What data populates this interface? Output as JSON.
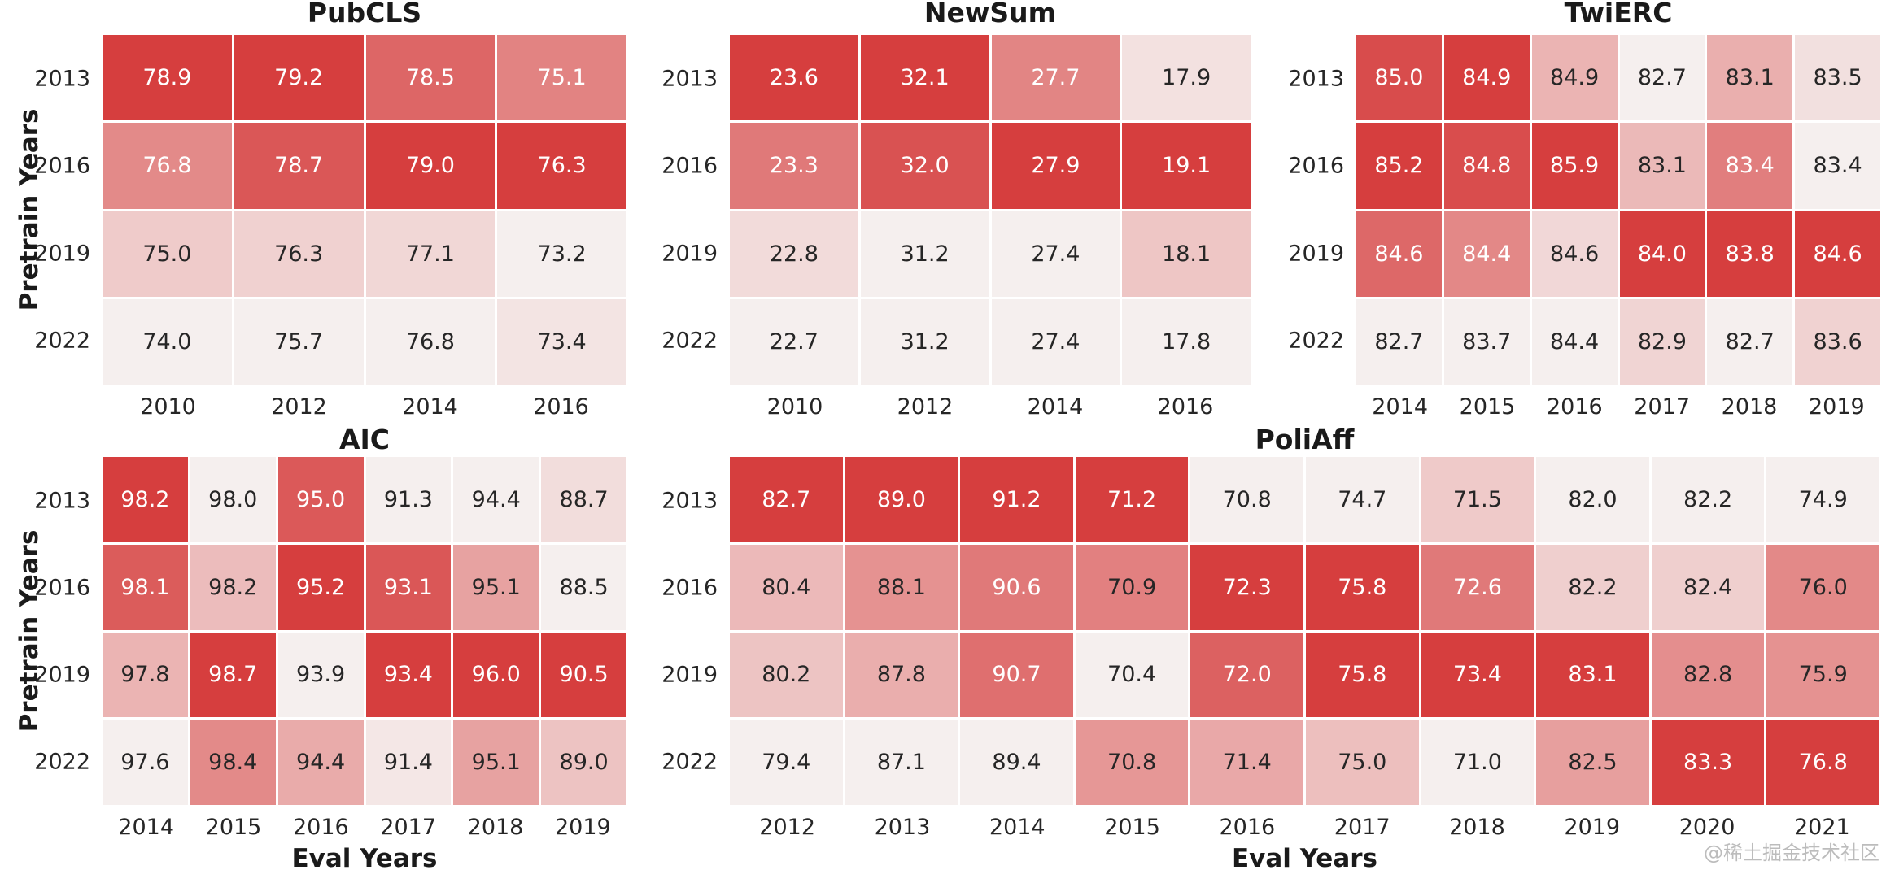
{
  "axis": {
    "y_label": "Pretrain Years",
    "x_label": "Eval Years"
  },
  "watermark": {
    "text": "@稀土掘金技术社区"
  },
  "colors": {
    "cmap_low": "#f5efee",
    "cmap_high": "#d63e3e",
    "annot_dark": "#262626",
    "annot_light": "#ffffff",
    "grid_gap": "#ffffff",
    "watermark": "#bcbcbc"
  },
  "chart_data": [
    {
      "type": "heatmap",
      "title": "PubCLS",
      "y_labels": [
        "2013",
        "2016",
        "2019",
        "2022"
      ],
      "x_labels": [
        "2010",
        "2012",
        "2014",
        "2016"
      ],
      "values": [
        [
          78.9,
          79.2,
          78.5,
          75.1
        ],
        [
          76.8,
          78.7,
          79.0,
          76.3
        ],
        [
          75.0,
          76.3,
          77.1,
          73.2
        ],
        [
          74.0,
          75.7,
          76.8,
          73.4
        ]
      ],
      "white_annot": [
        [
          1,
          1,
          1,
          1
        ],
        [
          1,
          1,
          1,
          1
        ],
        [
          0,
          0,
          0,
          0
        ],
        [
          0,
          0,
          0,
          0
        ]
      ],
      "color_norm": "per-column min-max"
    },
    {
      "type": "heatmap",
      "title": "NewSum",
      "y_labels": [
        "2013",
        "2016",
        "2019",
        "2022"
      ],
      "x_labels": [
        "2010",
        "2012",
        "2014",
        "2016"
      ],
      "values": [
        [
          23.6,
          32.1,
          27.7,
          17.9
        ],
        [
          23.3,
          32.0,
          27.9,
          19.1
        ],
        [
          22.8,
          31.2,
          27.4,
          18.1
        ],
        [
          22.7,
          31.2,
          27.4,
          17.8
        ]
      ],
      "white_annot": [
        [
          1,
          1,
          1,
          0
        ],
        [
          1,
          1,
          1,
          1
        ],
        [
          0,
          0,
          0,
          0
        ],
        [
          0,
          0,
          0,
          0
        ]
      ],
      "color_norm": "per-column min-max"
    },
    {
      "type": "heatmap",
      "title": "TwiERC",
      "y_labels": [
        "2013",
        "2016",
        "2019",
        "2022"
      ],
      "x_labels": [
        "2014",
        "2015",
        "2016",
        "2017",
        "2018",
        "2019"
      ],
      "values": [
        [
          85.0,
          84.9,
          84.9,
          82.7,
          83.1,
          83.5
        ],
        [
          85.2,
          84.8,
          85.9,
          83.1,
          83.4,
          83.4
        ],
        [
          84.6,
          84.4,
          84.6,
          84.0,
          83.8,
          84.6
        ],
        [
          82.7,
          83.7,
          84.4,
          82.9,
          82.7,
          83.6
        ]
      ],
      "white_annot": [
        [
          1,
          1,
          0,
          0,
          0,
          0
        ],
        [
          1,
          1,
          1,
          0,
          1,
          0
        ],
        [
          1,
          1,
          0,
          1,
          1,
          1
        ],
        [
          0,
          0,
          0,
          0,
          0,
          0
        ]
      ],
      "color_norm": "per-column min-max"
    },
    {
      "type": "heatmap",
      "title": "AIC",
      "y_labels": [
        "2013",
        "2016",
        "2019",
        "2022"
      ],
      "x_labels": [
        "2014",
        "2015",
        "2016",
        "2017",
        "2018",
        "2019"
      ],
      "values": [
        [
          98.2,
          98.0,
          95.0,
          91.3,
          94.4,
          88.7
        ],
        [
          98.1,
          98.2,
          95.2,
          93.1,
          95.1,
          88.5
        ],
        [
          97.8,
          98.7,
          93.9,
          93.4,
          96.0,
          90.5
        ],
        [
          97.6,
          98.4,
          94.4,
          91.4,
          95.1,
          89.0
        ]
      ],
      "white_annot": [
        [
          1,
          0,
          1,
          0,
          0,
          0
        ],
        [
          1,
          0,
          1,
          1,
          0,
          0
        ],
        [
          0,
          1,
          0,
          1,
          1,
          1
        ],
        [
          0,
          0,
          0,
          0,
          0,
          0
        ]
      ],
      "color_norm": "per-column min-max"
    },
    {
      "type": "heatmap",
      "title": "PoliAff",
      "y_labels": [
        "2013",
        "2016",
        "2019",
        "2022"
      ],
      "x_labels": [
        "2012",
        "2013",
        "2014",
        "2015",
        "2016",
        "2017",
        "2018",
        "2019",
        "2020",
        "2021"
      ],
      "values": [
        [
          82.7,
          89.0,
          91.2,
          71.2,
          70.8,
          74.7,
          71.5,
          82.0,
          82.2,
          74.9
        ],
        [
          80.4,
          88.1,
          90.6,
          70.9,
          72.3,
          75.8,
          72.6,
          82.2,
          82.4,
          76.0
        ],
        [
          80.2,
          87.8,
          90.7,
          70.4,
          72.0,
          75.8,
          73.4,
          83.1,
          82.8,
          75.9
        ],
        [
          79.4,
          87.1,
          89.4,
          70.8,
          71.4,
          75.0,
          71.0,
          82.5,
          83.3,
          76.8
        ]
      ],
      "white_annot": [
        [
          1,
          1,
          1,
          1,
          0,
          0,
          0,
          0,
          0,
          0
        ],
        [
          0,
          0,
          1,
          0,
          1,
          1,
          1,
          0,
          0,
          0
        ],
        [
          0,
          0,
          1,
          0,
          1,
          1,
          1,
          1,
          0,
          0
        ],
        [
          0,
          0,
          0,
          0,
          0,
          0,
          0,
          0,
          1,
          1
        ]
      ],
      "color_norm": "per-column min-max"
    }
  ]
}
